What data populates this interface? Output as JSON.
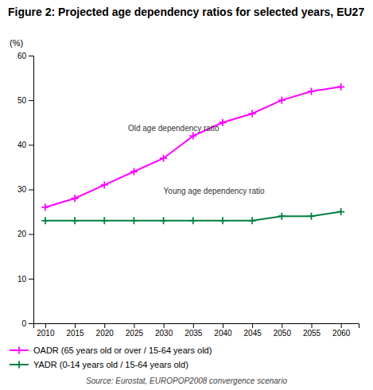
{
  "chart_data": {
    "type": "line",
    "title": "Figure 2: Projected age dependency ratios for selected years, EU27",
    "y_label": "(%)",
    "source": "Source: Eurostat, EUROPOP2008 convergence scenario",
    "x": [
      2010,
      2015,
      2020,
      2025,
      2030,
      2035,
      2040,
      2045,
      2050,
      2055,
      2060
    ],
    "xlim": [
      2008,
      2063
    ],
    "xticks": [
      2010,
      2015,
      2020,
      2025,
      2030,
      2035,
      2040,
      2045,
      2050,
      2055,
      2060
    ],
    "ylim": [
      0,
      60
    ],
    "yticks": [
      0,
      10,
      20,
      30,
      40,
      50,
      60
    ],
    "grid": false,
    "legend": "bottom",
    "series": [
      {
        "name": "OADR (65 years old or over / 15-64 years old)",
        "color": "#ff00ff",
        "marker": "plus",
        "values": [
          26,
          28,
          31,
          34,
          37,
          42,
          45,
          47,
          50,
          52,
          53
        ]
      },
      {
        "name": "YADR (0-14 years old / 15-64 years old)",
        "color": "#008040",
        "marker": "plus",
        "values": [
          23,
          23,
          23,
          23,
          23,
          23,
          23,
          23,
          24,
          24,
          25
        ]
      }
    ],
    "annotations": [
      {
        "text": "Old age dependency ratio",
        "x": 2024,
        "y": 43
      },
      {
        "text": "Young age dependency ratio",
        "x": 2030,
        "y": 29
      }
    ]
  }
}
